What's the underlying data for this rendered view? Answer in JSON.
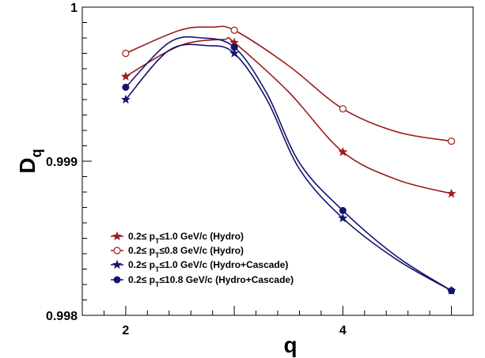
{
  "chart_data": {
    "type": "line",
    "xlabel": "q",
    "ylabel": "D",
    "ylabel_sub": "q",
    "xlim": [
      1.6,
      5.2
    ],
    "ylim": [
      0.998,
      1.0
    ],
    "x_tick_labels": [
      "2",
      "4"
    ],
    "y_tick_labels": [
      "0.998",
      "0.999",
      "1"
    ],
    "grid": false,
    "legend_position": "bottom-left",
    "series": [
      {
        "name": "0.2≤ pT≤1.0 GeV/c (Hydro)",
        "legend": {
          "pre": "0.2≤ p",
          "sub": "T",
          "post": "≤1.0 GeV/c (Hydro)"
        },
        "color": "#9b1c1c",
        "marker": "star",
        "x": [
          2,
          3,
          4,
          5
        ],
        "y": [
          0.99955,
          0.99977,
          0.99906,
          0.99879
        ],
        "curve": [
          [
            2,
            0.99955
          ],
          [
            2.5,
            0.99975
          ],
          [
            2.9,
            0.99979
          ],
          [
            3,
            0.99977
          ],
          [
            3.5,
            0.99945
          ],
          [
            4,
            0.99906
          ],
          [
            4.5,
            0.99888
          ],
          [
            5,
            0.99879
          ]
        ]
      },
      {
        "name": "0.2≤ pT≤0.8 GeV/c (Hydro)",
        "legend": {
          "pre": "0.2≤ p",
          "sub": "T",
          "post": "≤0.8 GeV/c (Hydro)"
        },
        "color": "#9b1c1c",
        "marker": "open-circle",
        "x": [
          2,
          3,
          4,
          5
        ],
        "y": [
          0.9997,
          0.99985,
          0.99934,
          0.99913
        ],
        "curve": [
          [
            2,
            0.9997
          ],
          [
            2.5,
            0.99985
          ],
          [
            2.8,
            0.99987
          ],
          [
            3,
            0.99985
          ],
          [
            3.5,
            0.99962
          ],
          [
            4,
            0.99934
          ],
          [
            4.5,
            0.99919
          ],
          [
            5,
            0.99913
          ]
        ]
      },
      {
        "name": "0.2≤ pT≤1.0 GeV/c (Hydro+Cascade)",
        "legend": {
          "pre": "0.2≤ p",
          "sub": "T",
          "post": "≤1.0 GeV/c (Hydro+Cascade)"
        },
        "color": "#14146e",
        "marker": "star",
        "x": [
          2,
          3,
          4,
          5
        ],
        "y": [
          0.9994,
          0.9997,
          0.99863,
          0.99816
        ],
        "curve": [
          [
            2,
            0.9994
          ],
          [
            2.4,
            0.99972
          ],
          [
            2.75,
            0.99975
          ],
          [
            3,
            0.9997
          ],
          [
            3.3,
            0.9994
          ],
          [
            3.6,
            0.99895
          ],
          [
            4,
            0.99863
          ],
          [
            4.5,
            0.99836
          ],
          [
            5,
            0.99816
          ]
        ]
      },
      {
        "name": "0.2≤ pT≤10.8 GeV/c (Hydro+Cascade)",
        "legend": {
          "pre": "0.2≤ p",
          "sub": "T",
          "post": "≤10.8 GeV/c (Hydro+Cascade)"
        },
        "color": "#14146e",
        "marker": "filled-circle",
        "x": [
          2,
          3,
          4,
          5
        ],
        "y": [
          0.99948,
          0.99974,
          0.99868,
          0.99816
        ],
        "curve": [
          [
            2,
            0.99948
          ],
          [
            2.4,
            0.99977
          ],
          [
            2.7,
            0.9998
          ],
          [
            3,
            0.99974
          ],
          [
            3.3,
            0.99944
          ],
          [
            3.6,
            0.99899
          ],
          [
            4,
            0.99868
          ],
          [
            4.5,
            0.99838
          ],
          [
            5,
            0.99816
          ]
        ]
      }
    ]
  }
}
